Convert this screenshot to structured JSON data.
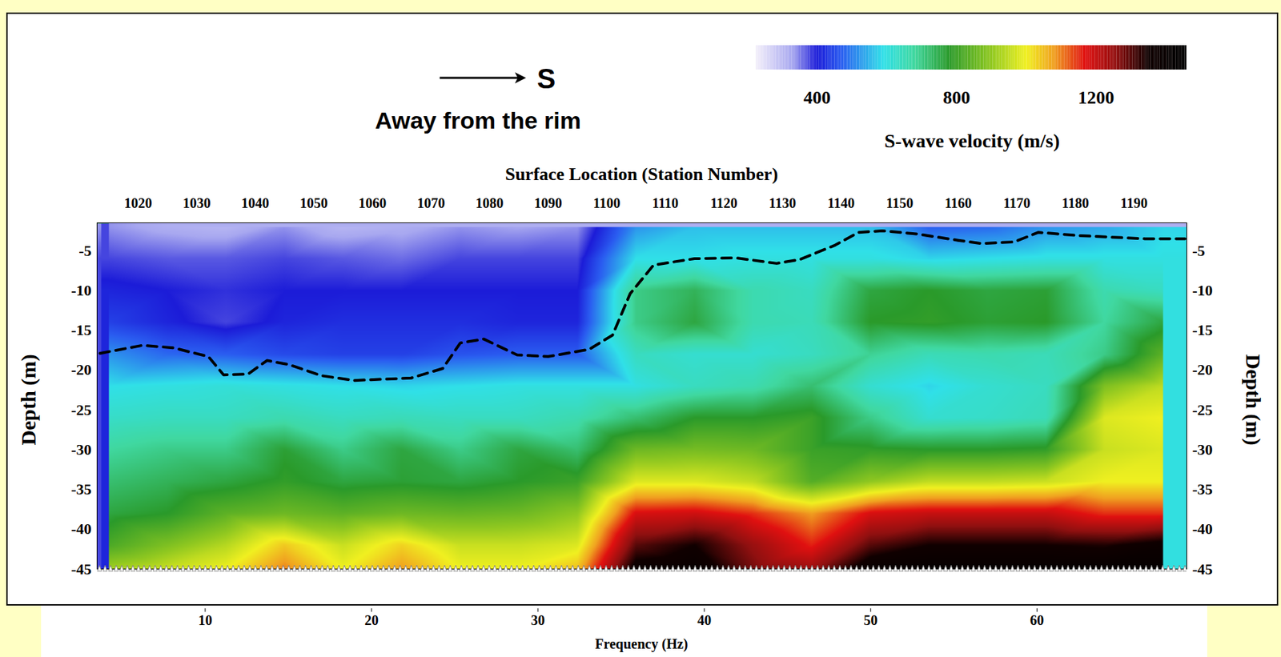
{
  "chart_data": {
    "type": "heatmap",
    "annotations": [
      "S",
      "Away from the rim"
    ],
    "xlabel": "Surface Location (Station Number)",
    "ylabel": "Depth (m)",
    "x": [
      1015,
      1025,
      1035,
      1045,
      1055,
      1065,
      1075,
      1085,
      1095,
      1105,
      1115,
      1125,
      1135,
      1145,
      1155,
      1165,
      1175,
      1185,
      1195
    ],
    "y": [
      -2,
      -6,
      -10,
      -14,
      -18,
      -22,
      -26,
      -30,
      -34,
      -38,
      -42,
      -45
    ],
    "values": [
      [
        340,
        320,
        310,
        340,
        310,
        320,
        340,
        330,
        340,
        520,
        560,
        560,
        560,
        560,
        470,
        480,
        520,
        540,
        580
      ],
      [
        380,
        370,
        370,
        380,
        370,
        360,
        380,
        380,
        380,
        590,
        590,
        600,
        600,
        600,
        580,
        590,
        600,
        600,
        600
      ],
      [
        410,
        400,
        390,
        400,
        400,
        400,
        400,
        400,
        400,
        700,
        740,
        660,
        640,
        760,
        780,
        760,
        770,
        660,
        640
      ],
      [
        440,
        410,
        380,
        410,
        420,
        420,
        420,
        410,
        410,
        700,
        760,
        660,
        650,
        780,
        790,
        770,
        780,
        680,
        760
      ],
      [
        520,
        480,
        470,
        450,
        440,
        440,
        460,
        470,
        470,
        640,
        620,
        620,
        640,
        690,
        650,
        660,
        650,
        700,
        840
      ],
      [
        590,
        600,
        610,
        600,
        590,
        580,
        590,
        600,
        600,
        600,
        640,
        660,
        720,
        620,
        580,
        620,
        640,
        880,
        950
      ],
      [
        630,
        640,
        640,
        660,
        640,
        650,
        640,
        640,
        660,
        720,
        780,
        780,
        800,
        700,
        620,
        630,
        650,
        980,
        1000
      ],
      [
        680,
        700,
        700,
        770,
        700,
        760,
        700,
        760,
        720,
        860,
        870,
        860,
        800,
        790,
        780,
        780,
        790,
        960,
        980
      ],
      [
        720,
        740,
        760,
        790,
        760,
        770,
        760,
        780,
        800,
        980,
        980,
        950,
        830,
        900,
        950,
        950,
        960,
        1000,
        1000
      ],
      [
        760,
        780,
        840,
        860,
        840,
        860,
        850,
        860,
        900,
        1180,
        1190,
        1150,
        1080,
        1180,
        1200,
        1200,
        1200,
        1150,
        1150
      ],
      [
        820,
        880,
        940,
        1040,
        960,
        1030,
        960,
        960,
        980,
        1300,
        1350,
        1250,
        1160,
        1300,
        1350,
        1350,
        1350,
        1340,
        1380
      ],
      [
        920,
        960,
        1000,
        1100,
        1000,
        1080,
        1000,
        1000,
        1050,
        1380,
        1400,
        1280,
        1250,
        1400,
        1420,
        1420,
        1420,
        1420,
        1420
      ]
    ],
    "xlim": [
      1013,
      1199
    ],
    "xticks": [
      1020,
      1030,
      1040,
      1050,
      1060,
      1070,
      1080,
      1090,
      1100,
      1110,
      1120,
      1130,
      1140,
      1150,
      1160,
      1170,
      1180,
      1190
    ],
    "ylim": [
      -45,
      -1.5
    ],
    "yticks": [
      -5,
      -10,
      -15,
      -20,
      -25,
      -30,
      -35,
      -40,
      -45
    ],
    "x2label": "Frequency (Hz)",
    "x2lim": [
      3.5,
      69
    ],
    "x2ticks": [
      10,
      20,
      30,
      40,
      50,
      60
    ],
    "colorbar": {
      "label": "S-wave velocity (m/s)",
      "range": [
        225,
        1460
      ],
      "ticks": [
        400,
        800,
        1200
      ]
    },
    "boundary": {
      "x": [
        1013.5,
        1020.7,
        1026,
        1032,
        1034.6,
        1038.8,
        1042,
        1045.7,
        1051.3,
        1056.9,
        1066.6,
        1072,
        1075,
        1079,
        1084.7,
        1090,
        1097,
        1101,
        1104,
        1108,
        1115,
        1122,
        1129,
        1133,
        1139,
        1143,
        1147,
        1153,
        1160,
        1164,
        1169.5,
        1173.7,
        1180.6,
        1191.8,
        1198.7
      ],
      "y": [
        -17.9,
        -16.9,
        -17.2,
        -18.3,
        -20.6,
        -20.5,
        -18.8,
        -19.3,
        -20.7,
        -21.3,
        -21,
        -19.8,
        -16.6,
        -16.1,
        -18.1,
        -18.3,
        -17.4,
        -15.6,
        -10.4,
        -6.8,
        -6.0,
        -5.9,
        -6.6,
        -6.1,
        -4.3,
        -2.7,
        -2.5,
        -2.9,
        -3.7,
        -4.1,
        -3.9,
        -2.7,
        -3.1,
        -3.5,
        -3.5
      ],
      "line_style": "dashed",
      "color": "#000000"
    }
  }
}
